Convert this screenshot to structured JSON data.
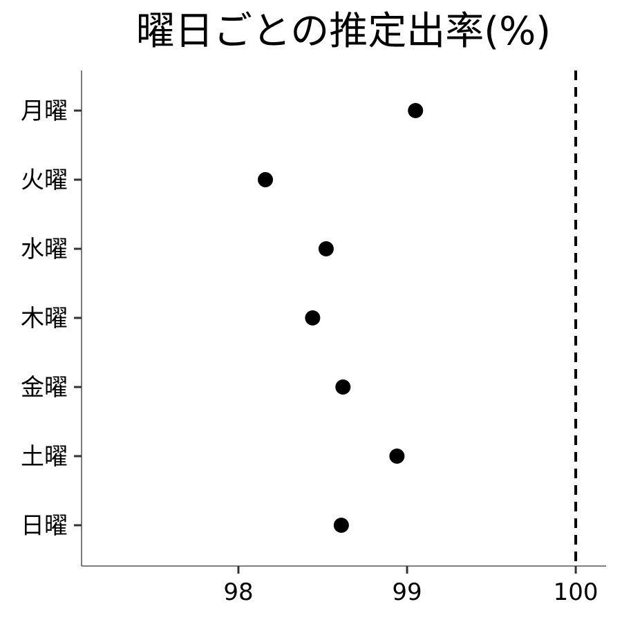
{
  "chart_data": {
    "type": "scatter",
    "title": "曜日ごとの推定出率(%)",
    "xlabel": "",
    "ylabel": "",
    "categories": [
      "月曜",
      "火曜",
      "水曜",
      "木曜",
      "金曜",
      "土曜",
      "日曜"
    ],
    "values": [
      99.05,
      98.16,
      98.52,
      98.44,
      98.62,
      98.94,
      98.61
    ],
    "xlim": [
      97.07,
      100.18
    ],
    "xticks": [
      "98",
      "99",
      "100"
    ],
    "reference_line": {
      "x": 100,
      "style": "dashed"
    },
    "grid": false,
    "legend": "none",
    "colors": {
      "point": "#000000",
      "reference": "#000000",
      "axis": "#333333"
    }
  }
}
